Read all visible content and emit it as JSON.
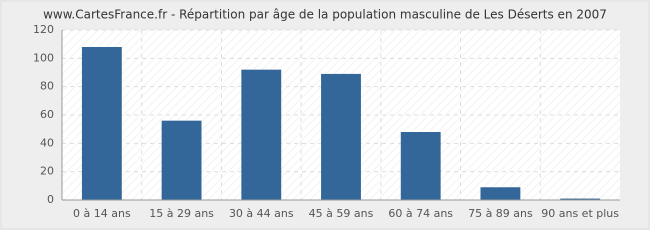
{
  "chart_data": {
    "type": "bar",
    "title": "www.CartesFrance.fr - Répartition par âge de la population masculine de Les Déserts en 2007",
    "categories": [
      "0 à 14 ans",
      "15 à 29 ans",
      "30 à 44 ans",
      "45 à 59 ans",
      "60 à 74 ans",
      "75 à 89 ans",
      "90 ans et plus"
    ],
    "values": [
      108,
      56,
      92,
      89,
      48,
      9,
      1
    ],
    "color": "#336699",
    "ylim": [
      0,
      120
    ],
    "yticks": [
      0,
      20,
      40,
      60,
      80,
      100,
      120
    ],
    "grid": true
  }
}
